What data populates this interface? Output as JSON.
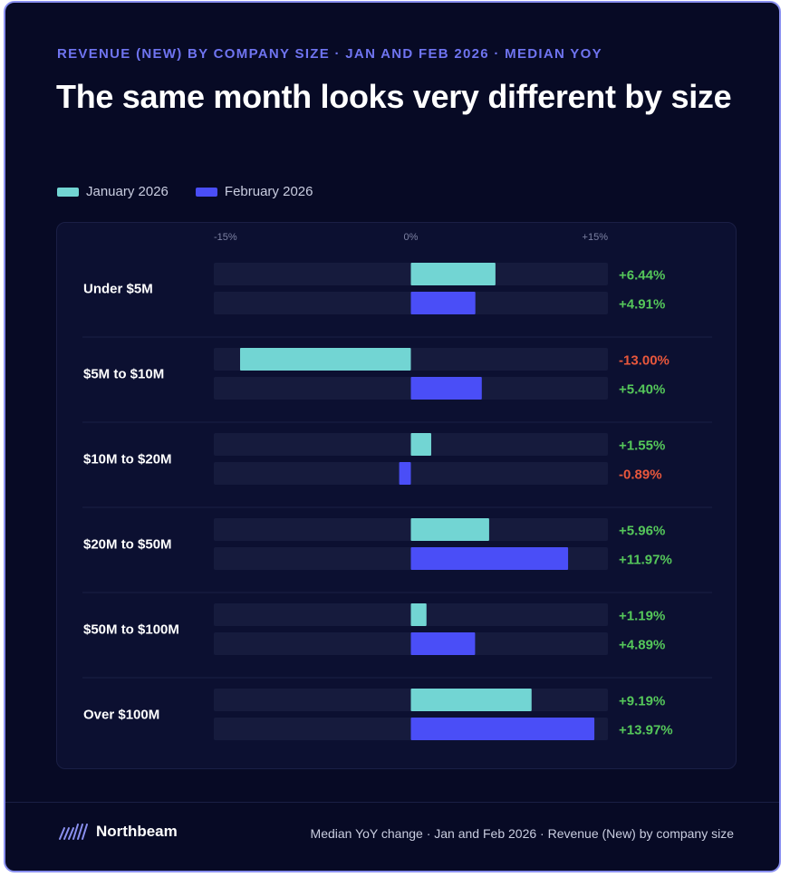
{
  "header": {
    "eyebrow": "REVENUE (NEW) BY COMPANY SIZE · JAN AND FEB 2026 · MEDIAN YOY",
    "title": "The same month looks very different by size"
  },
  "footer": {
    "brand": "Northbeam",
    "note": "Median YoY change · Jan and Feb 2026 · Revenue (New) by company size"
  },
  "colors": {
    "background": "#070a25",
    "panel": "#0c1031",
    "track": "#161b3d",
    "january": "#72d5d3",
    "february": "#4a4ef7",
    "positive": "#55c75a",
    "negative": "#e8573c",
    "accent": "#6f74f0"
  },
  "chart_data": {
    "type": "bar",
    "orientation": "horizontal",
    "xlim": [
      -15,
      15
    ],
    "ticks": [
      "-15%",
      "0%",
      "+15%"
    ],
    "tick_values": [
      -15,
      0,
      15
    ],
    "legend_position": "top-left",
    "grid": false,
    "categories": [
      "Under $5M",
      "$5M to $10M",
      "$10M to $20M",
      "$20M to $50M",
      "$50M to $100M",
      "Over $100M"
    ],
    "series": [
      {
        "name": "January 2026",
        "values": [
          6.44,
          -13.0,
          1.55,
          5.96,
          1.19,
          9.19
        ],
        "labels": [
          "+6.44%",
          "-13.00%",
          "+1.55%",
          "+5.96%",
          "+1.19%",
          "+9.19%"
        ]
      },
      {
        "name": "February 2026",
        "values": [
          4.91,
          5.4,
          -0.89,
          11.97,
          4.89,
          13.97
        ],
        "labels": [
          "+4.91%",
          "+5.40%",
          "-0.89%",
          "+11.97%",
          "+4.89%",
          "+13.97%"
        ]
      }
    ]
  }
}
